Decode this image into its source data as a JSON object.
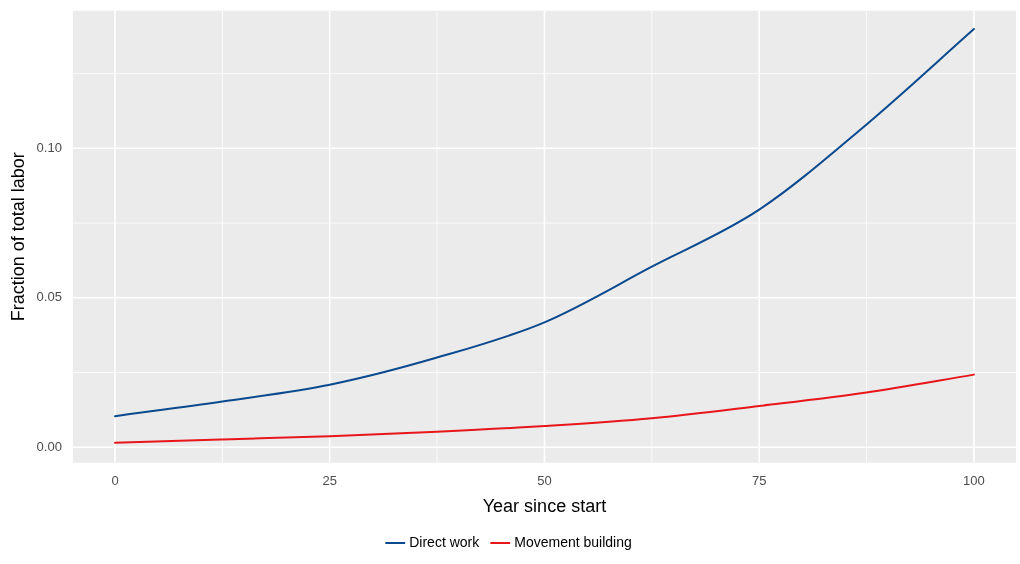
{
  "chart_data": {
    "type": "line",
    "xlabel": "Year since start",
    "ylabel": "Fraction of total labor",
    "x": [
      0,
      12.5,
      25,
      37.5,
      50,
      62.5,
      75,
      87.5,
      100
    ],
    "series": [
      {
        "name": "Direct work",
        "color": "#0b4a8f",
        "values": [
          0.0104,
          0.0153,
          0.0209,
          0.03,
          0.0418,
          0.0604,
          0.0795,
          0.108,
          0.1399
        ]
      },
      {
        "name": "Movement building",
        "color": "#e8161b",
        "values": [
          0.0015,
          0.0026,
          0.0037,
          0.0052,
          0.0071,
          0.0097,
          0.0138,
          0.0183,
          0.0243
        ]
      }
    ],
    "xlim": [
      -4.9,
      104.9
    ],
    "xticks": [
      0,
      25,
      50,
      75,
      100
    ],
    "ylim": [
      -0.0052,
      0.146
    ],
    "yticks": [
      {
        "value": 0,
        "label": "0.00"
      },
      {
        "value": 0.05,
        "label": "0.05"
      },
      {
        "value": 0.1,
        "label": "0.10"
      }
    ],
    "grid": true,
    "legend": "bottom",
    "marker": "none",
    "line_style": "solid"
  }
}
